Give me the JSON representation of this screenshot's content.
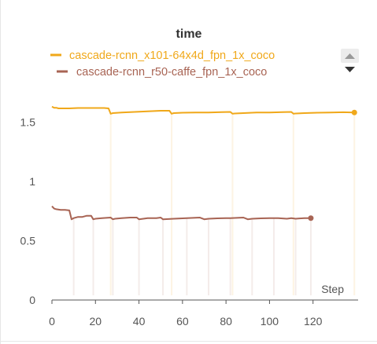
{
  "chart_data": {
    "type": "line",
    "title": "time",
    "xlabel": "Step",
    "ylabel": "",
    "xlim": [
      0,
      140
    ],
    "ylim": [
      0,
      1.8
    ],
    "x_ticks": [
      "0",
      "20",
      "40",
      "60",
      "80",
      "100",
      "120"
    ],
    "y_ticks": [
      "0",
      "0.5",
      "1",
      "1.5"
    ],
    "legend_position": "top",
    "grid": false,
    "series": [
      {
        "name": "cascade-rcnn_x101-64x4d_fpn_1x_coco",
        "color": "#f0a81a",
        "x": [
          0,
          1,
          2,
          3,
          5,
          8,
          12,
          18,
          24,
          26,
          27,
          28,
          32,
          38,
          44,
          50,
          54,
          55,
          56,
          60,
          66,
          72,
          78,
          82,
          83,
          84,
          88,
          94,
          100,
          106,
          110,
          111,
          112,
          116,
          122,
          128,
          134,
          139
        ],
        "y": [
          1.63,
          1.62,
          1.62,
          1.615,
          1.615,
          1.615,
          1.618,
          1.618,
          1.618,
          1.615,
          1.57,
          1.575,
          1.58,
          1.585,
          1.59,
          1.595,
          1.595,
          1.57,
          1.575,
          1.578,
          1.58,
          1.58,
          1.583,
          1.585,
          1.57,
          1.572,
          1.575,
          1.58,
          1.58,
          1.583,
          1.585,
          1.57,
          1.572,
          1.575,
          1.578,
          1.58,
          1.582,
          1.58
        ]
      },
      {
        "name": "cascade-rcnn_r50-caffe_fpn_1x_coco",
        "color": "#a86454",
        "x": [
          0,
          1,
          2,
          4,
          6,
          8,
          9,
          10,
          12,
          14,
          16,
          18,
          19,
          20,
          23,
          27,
          28,
          29,
          32,
          36,
          39,
          40,
          44,
          48,
          50,
          51,
          56,
          60,
          62,
          68,
          70,
          72,
          76,
          80,
          82,
          88,
          90,
          92,
          96,
          100,
          104,
          108,
          110,
          112,
          116,
          119
        ],
        "y": [
          0.79,
          0.77,
          0.765,
          0.76,
          0.76,
          0.755,
          0.68,
          0.69,
          0.7,
          0.7,
          0.71,
          0.71,
          0.68,
          0.685,
          0.69,
          0.695,
          0.68,
          0.685,
          0.69,
          0.695,
          0.695,
          0.68,
          0.69,
          0.69,
          0.695,
          0.68,
          0.685,
          0.688,
          0.69,
          0.695,
          0.68,
          0.685,
          0.688,
          0.69,
          0.69,
          0.695,
          0.68,
          0.685,
          0.688,
          0.69,
          0.69,
          0.685,
          0.69,
          0.685,
          0.69,
          0.69
        ]
      }
    ],
    "faint_raw": [
      {
        "color": "#f0a81a",
        "spikes_x": [
          27,
          55,
          83,
          111,
          139
        ]
      },
      {
        "color": "#a86454",
        "spikes_x": [
          10,
          19,
          28,
          40,
          51,
          62,
          72,
          82,
          92,
          102,
          112,
          119
        ]
      }
    ]
  },
  "legend": {
    "up_label": "▲",
    "down_label": "▼"
  }
}
